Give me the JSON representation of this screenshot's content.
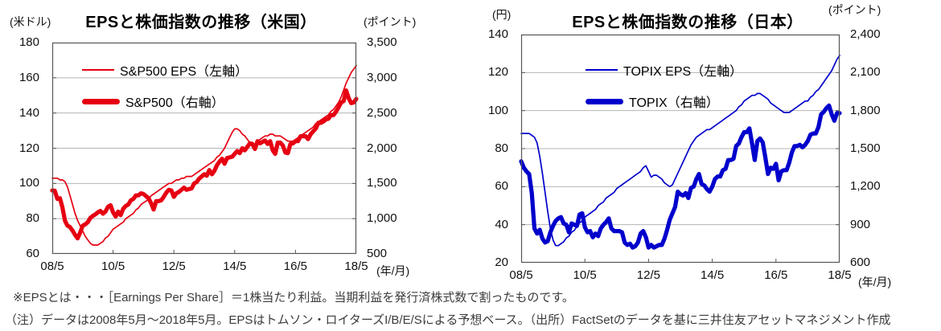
{
  "footnotes": {
    "eps_definition": "※EPSとは・・・［Earnings Per Share］＝1株当たり利益。当期利益を発行済株式数で割ったものです。",
    "source": "（注）データは2008年5月～2018年5月。EPSはトムソン・ロイターズI/B/E/Sによる予想ベース。（出所）FactSetのデータを基に三井住友アセットマネジメント作成"
  },
  "chart_data": [
    {
      "id": "us",
      "type": "line",
      "title": "EPSと株価指数の推移（米国）",
      "unit_left": "(米ドル)",
      "unit_right": "(ポイント)",
      "x_unit": "(年/月)",
      "x_ticks": [
        "08/5",
        "10/5",
        "12/5",
        "14/5",
        "16/5",
        "18/5"
      ],
      "x_range_note": "monthly 2008/5 - 2018/5",
      "grid": "horizontal",
      "legend_position": "top-left-inside",
      "left_axis": {
        "min": 60,
        "max": 180,
        "tick_labels": [
          "180",
          "160",
          "140",
          "120",
          "100",
          "80",
          "60"
        ]
      },
      "right_axis": {
        "min": 500,
        "max": 3500,
        "tick_labels": [
          "3,500",
          "3,000",
          "2,500",
          "2,000",
          "1,500",
          "1,000",
          "500"
        ]
      },
      "series": [
        {
          "name": "S&P500 EPS（左軸）",
          "axis": "left",
          "style": "thin",
          "color": "#e60012",
          "values": [
            103,
            103,
            103,
            102,
            102,
            101,
            98,
            93,
            88,
            83,
            79,
            76,
            73,
            70,
            68,
            66,
            65,
            65,
            65,
            66,
            67,
            69,
            70,
            72,
            74,
            75,
            76,
            77,
            78,
            80,
            81,
            82,
            83,
            85,
            86,
            88,
            89,
            90,
            91,
            93,
            94,
            95,
            96,
            97,
            98,
            99,
            100,
            100,
            101,
            102,
            102,
            103,
            103,
            104,
            104,
            104,
            105,
            106,
            107,
            108,
            109,
            110,
            111,
            112,
            113,
            115,
            116,
            118,
            120,
            123,
            126,
            129,
            131,
            131,
            130,
            128,
            127,
            125,
            123,
            122,
            122,
            123,
            125,
            126,
            127,
            127,
            128,
            128,
            127,
            127,
            127,
            126,
            125,
            124,
            124,
            124,
            125,
            126,
            127,
            128,
            129,
            130,
            131,
            132,
            134,
            135,
            136,
            137,
            138,
            139,
            141,
            142,
            144,
            146,
            149,
            153,
            157,
            160,
            163,
            165,
            167
          ]
        },
        {
          "name": "S&P500（右軸）",
          "axis": "right",
          "style": "thick",
          "color": "#e60012",
          "values": [
            1400,
            1395,
            1280,
            1290,
            1160,
            970,
            900,
            880,
            830,
            770,
            720,
            800,
            900,
            920,
            950,
            1010,
            1040,
            1060,
            1090,
            1110,
            1070,
            1100,
            1170,
            1190,
            1090,
            1030,
            1100,
            1050,
            1140,
            1180,
            1200,
            1260,
            1280,
            1330,
            1330,
            1360,
            1350,
            1320,
            1290,
            1220,
            1130,
            1250,
            1250,
            1260,
            1310,
            1370,
            1410,
            1400,
            1310,
            1360,
            1380,
            1410,
            1440,
            1410,
            1420,
            1430,
            1500,
            1520,
            1570,
            1600,
            1630,
            1610,
            1690,
            1630,
            1680,
            1760,
            1810,
            1850,
            1780,
            1860,
            1870,
            1880,
            1920,
            1960,
            1930,
            2000,
            1970,
            2020,
            2070,
            2060,
            1990,
            2100,
            2070,
            2090,
            2110,
            2060,
            2100,
            1970,
            1920,
            2080,
            2080,
            2040,
            1940,
            1930,
            2060,
            2070,
            2100,
            2100,
            2170,
            2170,
            2170,
            2130,
            2200,
            2240,
            2280,
            2360,
            2360,
            2380,
            2410,
            2420,
            2470,
            2470,
            2520,
            2580,
            2650,
            2670,
            2820,
            2710,
            2640,
            2650,
            2700
          ]
        }
      ]
    },
    {
      "id": "jp",
      "type": "line",
      "title": "EPSと株価指数の推移（日本）",
      "unit_left": "(円)",
      "unit_right": "(ポイント)",
      "x_unit": "(年/月)",
      "x_ticks": [
        "08/5",
        "10/5",
        "12/5",
        "14/5",
        "16/5",
        "18/5"
      ],
      "x_range_note": "monthly 2008/5 - 2018/5",
      "grid": "horizontal",
      "legend_position": "top-left-inside",
      "left_axis": {
        "min": 20,
        "max": 140,
        "tick_labels": [
          "140",
          "120",
          "100",
          "80",
          "60",
          "40",
          "20"
        ]
      },
      "right_axis": {
        "min": 600,
        "max": 2400,
        "tick_labels": [
          "2,400",
          "2,100",
          "1,800",
          "1,500",
          "1,200",
          "900",
          "600"
        ]
      },
      "series": [
        {
          "name": "TOPIX EPS（左軸）",
          "axis": "left",
          "style": "thin",
          "color": "#0000cc",
          "values": [
            88,
            88,
            88,
            88,
            87,
            86,
            83,
            76,
            67,
            57,
            47,
            38,
            32,
            29,
            29,
            30,
            31,
            33,
            34,
            36,
            37,
            39,
            41,
            42,
            44,
            45,
            46,
            47,
            48,
            50,
            51,
            52,
            54,
            55,
            56,
            57,
            59,
            60,
            61,
            62,
            63,
            64,
            65,
            66,
            67,
            68,
            70,
            71,
            68,
            65,
            66,
            66,
            65,
            64,
            62,
            61,
            60,
            61,
            64,
            67,
            70,
            73,
            76,
            79,
            82,
            84,
            86,
            87,
            88,
            89,
            90,
            90,
            91,
            92,
            93,
            94,
            95,
            96,
            97,
            98,
            99,
            100,
            102,
            103,
            105,
            106,
            107,
            108,
            108,
            109,
            109,
            108,
            107,
            106,
            104,
            103,
            102,
            101,
            100,
            99,
            99,
            99,
            100,
            101,
            102,
            103,
            104,
            105,
            105,
            107,
            108,
            110,
            111,
            113,
            115,
            117,
            119,
            121,
            124,
            127,
            129
          ]
        },
        {
          "name": "TOPIX（右軸）",
          "axis": "right",
          "style": "thick",
          "color": "#0000cc",
          "values": [
            1400,
            1350,
            1320,
            1300,
            1150,
            870,
            830,
            860,
            790,
            760,
            770,
            840,
            890,
            930,
            950,
            960,
            910,
            900,
            840,
            910,
            900,
            890,
            980,
            990,
            880,
            840,
            850,
            800,
            830,
            810,
            870,
            900,
            920,
            950,
            870,
            850,
            850,
            850,
            840,
            760,
            740,
            750,
            720,
            730,
            760,
            830,
            850,
            800,
            720,
            740,
            720,
            730,
            740,
            740,
            790,
            860,
            940,
            990,
            1040,
            1160,
            1140,
            1130,
            1150,
            1110,
            1190,
            1200,
            1260,
            1300,
            1220,
            1210,
            1180,
            1160,
            1200,
            1260,
            1280,
            1280,
            1330,
            1340,
            1410,
            1410,
            1420,
            1520,
            1540,
            1590,
            1630,
            1630,
            1660,
            1540,
            1410,
            1560,
            1580,
            1550,
            1430,
            1300,
            1350,
            1340,
            1380,
            1250,
            1320,
            1330,
            1330,
            1390,
            1470,
            1520,
            1520,
            1530,
            1510,
            1530,
            1560,
            1610,
            1620,
            1620,
            1670,
            1770,
            1790,
            1820,
            1840,
            1770,
            1720,
            1780,
            1780
          ]
        }
      ]
    }
  ]
}
